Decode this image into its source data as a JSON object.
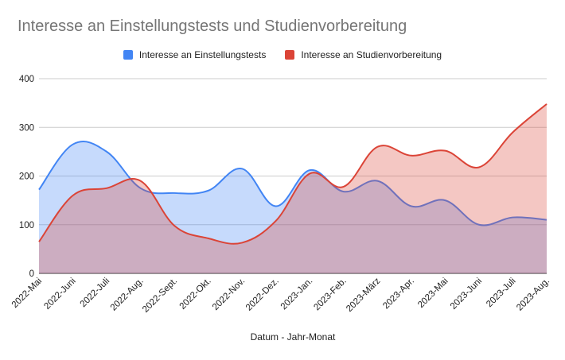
{
  "chart_data": {
    "type": "area",
    "title": "Interesse an Einstellungstests und Studienvorbereitung",
    "xlabel": "Datum - Jahr-Monat",
    "ylabel": "",
    "ylim": [
      0,
      400
    ],
    "yticks": [
      0,
      100,
      200,
      300,
      400
    ],
    "grid": true,
    "legend_position": "top-center",
    "categories": [
      "2022-Mai",
      "2022-Juni",
      "2022-Juli",
      "2022-Aug.",
      "2022-Sept.",
      "2022-Okt.",
      "2022-Nov.",
      "2022-Dez.",
      "2023-Jan.",
      "2023-Feb.",
      "2023-März",
      "2023-Apr.",
      "2023-Mai",
      "2023-Juni",
      "2023-Juli",
      "2023-Aug."
    ],
    "series": [
      {
        "name": "Interesse an Einstellungstests",
        "color": "#4285f4",
        "fill": "#c8dbfb",
        "values": [
          172,
          265,
          250,
          175,
          165,
          170,
          215,
          138,
          212,
          168,
          190,
          138,
          150,
          100,
          115,
          110
        ]
      },
      {
        "name": "Interesse an Studienvorbereitung",
        "color": "#db4437",
        "fill": "#f6bdbb",
        "values": [
          65,
          160,
          175,
          190,
          98,
          72,
          63,
          108,
          205,
          178,
          260,
          242,
          252,
          218,
          290,
          348
        ]
      }
    ]
  }
}
